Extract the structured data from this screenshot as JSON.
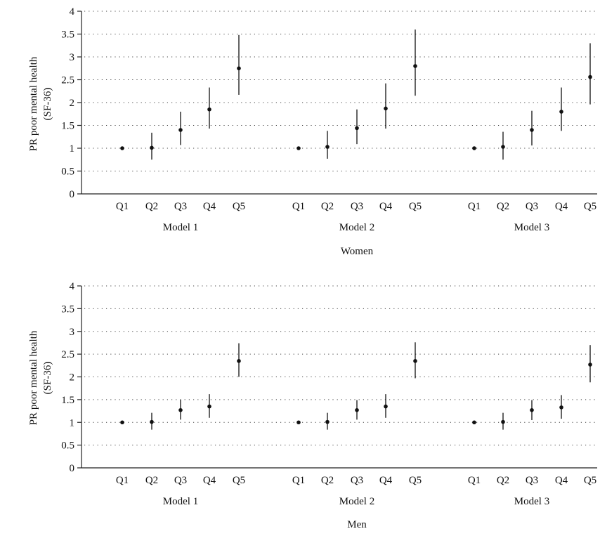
{
  "colors": {
    "marker": "#111111",
    "axis": "#222222",
    "grid": "#444444"
  },
  "chart_data": [
    {
      "type": "scatter",
      "panel": "Women",
      "panel_label": "Women",
      "ylabel_lines": [
        "PR poor mental health",
        "(SF-36)"
      ],
      "ylim": [
        0,
        4
      ],
      "yticks": [
        0,
        0.5,
        1,
        1.5,
        2,
        2.5,
        3,
        3.5,
        4
      ],
      "ytick_labels": [
        "0",
        "0.5",
        "1",
        "1.5",
        "2",
        "2.5",
        "3",
        "3.5",
        "4"
      ],
      "grid": "horizontal dotted",
      "categories": [
        "Q1",
        "Q2",
        "Q3",
        "Q4",
        "Q5"
      ],
      "groups": [
        {
          "name": "Model 1",
          "estimate": [
            1.0,
            1.01,
            1.4,
            1.85,
            2.75
          ],
          "lower": [
            1.0,
            0.75,
            1.07,
            1.43,
            2.17
          ],
          "upper": [
            1.0,
            1.34,
            1.8,
            2.33,
            3.48
          ]
        },
        {
          "name": "Model 2",
          "estimate": [
            1.0,
            1.03,
            1.44,
            1.87,
            2.8
          ],
          "lower": [
            1.0,
            0.77,
            1.09,
            1.43,
            2.15
          ],
          "upper": [
            1.0,
            1.38,
            1.85,
            2.42,
            3.6
          ]
        },
        {
          "name": "Model 3",
          "estimate": [
            1.0,
            1.03,
            1.4,
            1.8,
            2.56
          ],
          "lower": [
            1.0,
            0.75,
            1.06,
            1.38,
            1.96
          ],
          "upper": [
            1.0,
            1.36,
            1.82,
            2.33,
            3.3
          ]
        }
      ]
    },
    {
      "type": "scatter",
      "panel": "Men",
      "panel_label": "Men",
      "ylabel_lines": [
        "PR poor mental health",
        "(SF-36)"
      ],
      "ylim": [
        0,
        4
      ],
      "yticks": [
        0,
        0.5,
        1,
        1.5,
        2,
        2.5,
        3,
        3.5,
        4
      ],
      "ytick_labels": [
        "0",
        "0.5",
        "1",
        "1.5",
        "2",
        "2.5",
        "3",
        "3.5",
        "4"
      ],
      "grid": "horizontal dotted",
      "categories": [
        "Q1",
        "Q2",
        "Q3",
        "Q4",
        "Q5"
      ],
      "groups": [
        {
          "name": "Model 1",
          "estimate": [
            1.0,
            1.01,
            1.27,
            1.35,
            2.35
          ],
          "lower": [
            1.0,
            0.84,
            1.06,
            1.1,
            2.0
          ],
          "upper": [
            1.0,
            1.21,
            1.5,
            1.62,
            2.74
          ]
        },
        {
          "name": "Model 2",
          "estimate": [
            1.0,
            1.01,
            1.27,
            1.35,
            2.35
          ],
          "lower": [
            1.0,
            0.84,
            1.06,
            1.1,
            1.97
          ],
          "upper": [
            1.0,
            1.21,
            1.49,
            1.62,
            2.76
          ]
        },
        {
          "name": "Model 3",
          "estimate": [
            1.0,
            1.01,
            1.27,
            1.33,
            2.27
          ],
          "lower": [
            1.0,
            0.84,
            1.05,
            1.08,
            1.88
          ],
          "upper": [
            1.0,
            1.21,
            1.49,
            1.6,
            2.7
          ]
        }
      ]
    }
  ]
}
